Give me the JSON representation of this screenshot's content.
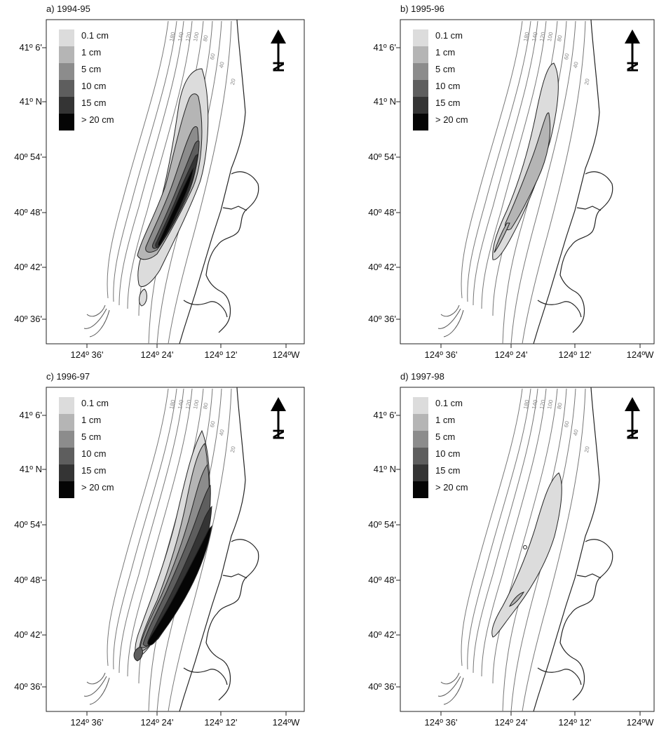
{
  "legend": [
    {
      "label": "0.1 cm",
      "color": "#dcdcdc"
    },
    {
      "label": "1 cm",
      "color": "#b5b5b5"
    },
    {
      "label": "5 cm",
      "color": "#8c8c8c"
    },
    {
      "label": "10 cm",
      "color": "#5e5e5e"
    },
    {
      "label": "15 cm",
      "color": "#343434"
    },
    {
      "label": "> 20 cm",
      "color": "#050505"
    }
  ],
  "y_ticks": [
    "41º 6'",
    "41º N",
    "40º 54'",
    "40º 48'",
    "40º 42'",
    "40º 36'"
  ],
  "x_ticks": [
    "124º 36'",
    "124º 24'",
    "124º 12'",
    "124ºW"
  ],
  "depth_labels": [
    "180",
    "140",
    "120",
    "100",
    "80",
    "60",
    "40",
    "20"
  ],
  "panels": [
    {
      "title": "a) 1994-95"
    },
    {
      "title": "b) 1995-96"
    },
    {
      "title": "c) 1996-97"
    },
    {
      "title": "d) 1997-98"
    }
  ]
}
